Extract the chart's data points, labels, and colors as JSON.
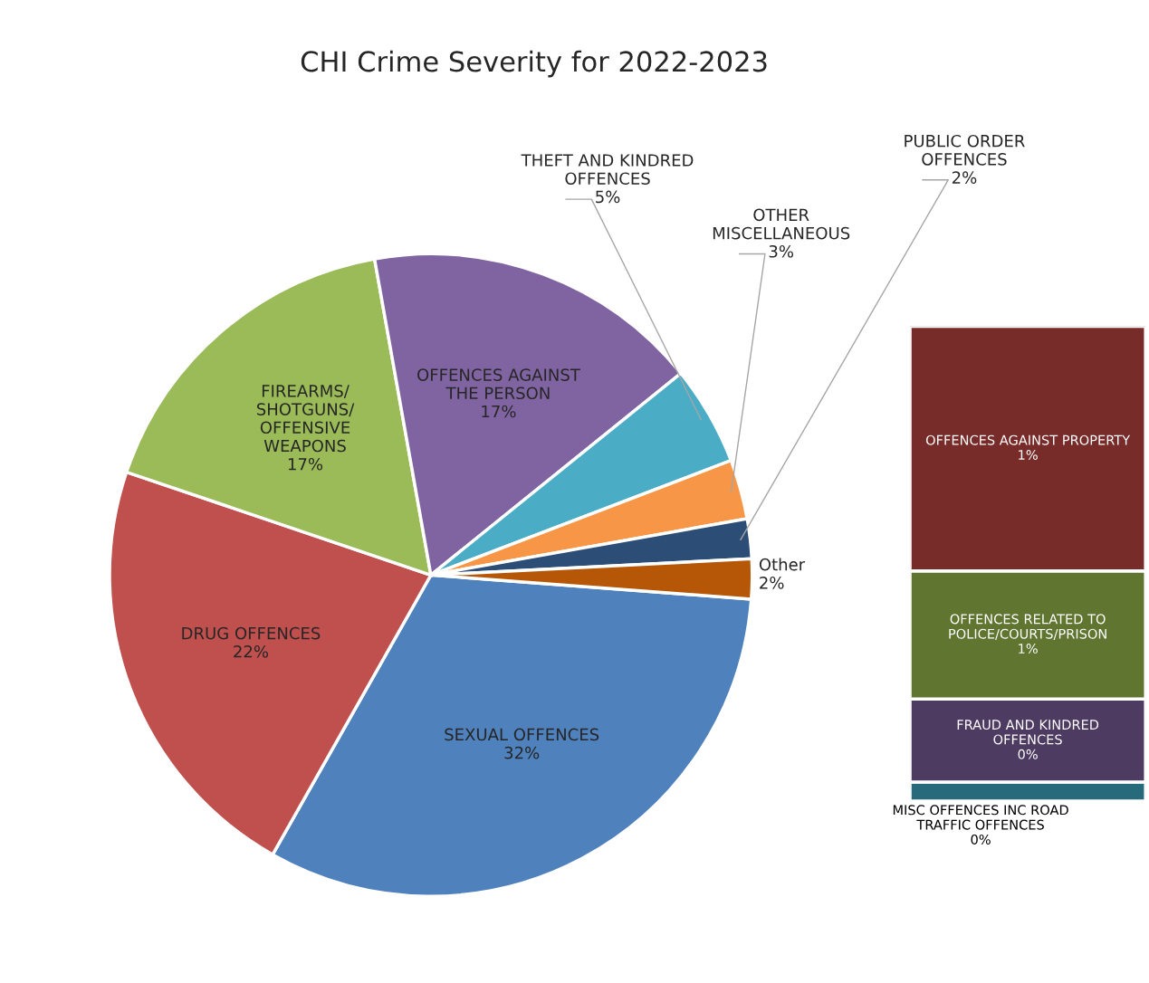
{
  "chart_data": [
    {
      "type": "pie",
      "title": "CHI Crime Severity for 2022-2023",
      "categories": [
        "SEXUAL OFFENCES",
        "DRUG OFFENCES",
        "FIREARMS/\nSHOTGUNS/\nOFFENSIVE\nWEAPONS",
        "OFFENCES AGAINST\nTHE PERSON",
        "THEFT AND KINDRED\nOFFENCES",
        "OTHER\nMISCELLANEOUS",
        "PUBLIC ORDER\nOFFENCES",
        "Other"
      ],
      "values": [
        32,
        22,
        17,
        17,
        5,
        3,
        2,
        2
      ],
      "colors": [
        "#4f81bd",
        "#c0504d",
        "#9bbb59",
        "#8064a2",
        "#4bacc6",
        "#f79646",
        "#2c4d75",
        "#b65708"
      ],
      "value_labels": [
        "32%",
        "22%",
        "17%",
        "17%",
        "5%",
        "3%",
        "2%",
        "2%"
      ],
      "legend": false
    },
    {
      "type": "bar",
      "stacked": true,
      "categories": [
        null
      ],
      "series": [
        {
          "name": "MISC OFFENCES INC ROAD\nTRAFFIC OFFENCES",
          "color": "#276a7c",
          "values": [
            0.08
          ],
          "value_labels": [
            "0%"
          ]
        },
        {
          "name": "FRAUD AND KINDRED\nOFFENCES",
          "color": "#4d3b62",
          "values": [
            0.35
          ],
          "value_labels": [
            "0%"
          ]
        },
        {
          "name": "OFFENCES RELATED TO\nPOLICE/COURTS/PRISON",
          "color": "#5f7530",
          "values": [
            0.54
          ],
          "value_labels": [
            "1%"
          ]
        },
        {
          "name": "OFFENCES AGAINST PROPERTY",
          "color": "#772c2a",
          "values": [
            1.03
          ],
          "value_labels": [
            "1%"
          ]
        }
      ],
      "legend": false
    }
  ]
}
